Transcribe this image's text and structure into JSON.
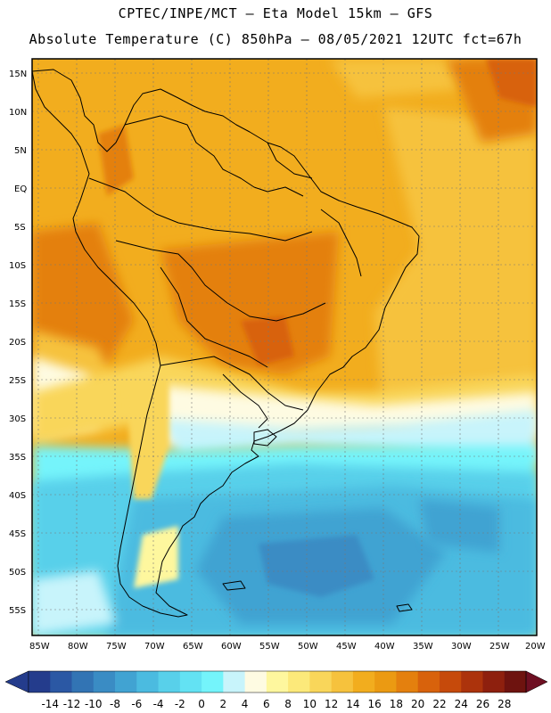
{
  "header": {
    "line1": "CPTEC/INPE/MCT –  Eta Model 15km – GFS",
    "line2": "Absolute Temperature (C) 850hPa – 08/05/2021 12UTC fct=67h"
  },
  "axes": {
    "lat_labels": [
      "15N",
      "10N",
      "5N",
      "EQ",
      "5S",
      "10S",
      "15S",
      "20S",
      "25S",
      "30S",
      "35S",
      "40S",
      "45S",
      "50S",
      "55S"
    ],
    "lon_labels": [
      "85W",
      "80W",
      "75W",
      "70W",
      "65W",
      "60W",
      "55W",
      "50W",
      "45W",
      "40W",
      "35W",
      "30W",
      "25W",
      "20W"
    ]
  },
  "colorbar": {
    "labels": [
      "-14",
      "-12",
      "-10",
      "-8",
      "-6",
      "-4",
      "-2",
      "0",
      "2",
      "4",
      "6",
      "8",
      "10",
      "12",
      "14",
      "16",
      "18",
      "20",
      "22",
      "24",
      "26",
      "28"
    ],
    "colors": [
      "#243c8c",
      "#2b58a4",
      "#3274b4",
      "#3a8cc4",
      "#41a3d2",
      "#4bbbe0",
      "#58d0ea",
      "#63e2f3",
      "#74f4fb",
      "#c8f4fb",
      "#fefbe2",
      "#fef79e",
      "#fce97a",
      "#f9d65a",
      "#f6c23d",
      "#f2ad1e",
      "#eb9a12",
      "#e4800e",
      "#d8620c",
      "#c64a0b",
      "#ac330c",
      "#8e200e",
      "#6e130f"
    ],
    "left_arrow_color": "#243c8c",
    "right_arrow_color": "#6e0f22"
  },
  "palette": {
    "frame": "#000000",
    "grid": "#777777",
    "coast": "#000000"
  }
}
